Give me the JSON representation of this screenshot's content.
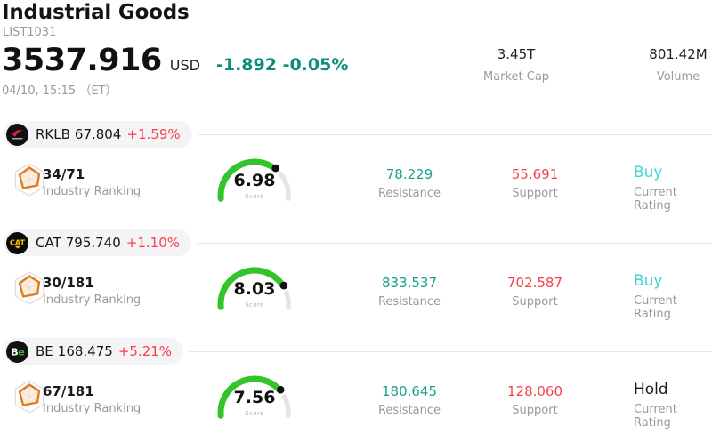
{
  "header": {
    "title": "Industrial Goods",
    "subtitle": "LIST1031",
    "price": "3537.916",
    "currency": "USD",
    "change": "-1.892 -0.05%",
    "timestamp": "04/10, 15:15 （ET）",
    "stats": [
      {
        "value": "3.45T",
        "label": "Market Cap"
      },
      {
        "value": "801.42M",
        "label": "Volume"
      }
    ]
  },
  "stocks": [
    {
      "ticker": "RKLB",
      "price": "67.804",
      "change": "+1.59%",
      "logo": "rocketlab-logo",
      "ranking": "34/71",
      "ranking_label": "Industry Ranking",
      "score": 6.98,
      "score_label": "Score",
      "resistance": "78.229",
      "resistance_label": "Resistance",
      "support": "55.691",
      "support_label": "Support",
      "rating": "Buy",
      "rating_label": "Current Rating"
    },
    {
      "ticker": "CAT",
      "price": "795.740",
      "change": "+1.10%",
      "logo": "caterpillar-logo",
      "ranking": "30/181",
      "ranking_label": "Industry Ranking",
      "score": 8.03,
      "score_label": "Score",
      "resistance": "833.537",
      "resistance_label": "Resistance",
      "support": "702.587",
      "support_label": "Support",
      "rating": "Buy",
      "rating_label": "Current Rating"
    },
    {
      "ticker": "BE",
      "price": "168.475",
      "change": "+5.21%",
      "logo": "bloomenergy-logo",
      "ranking": "67/181",
      "ranking_label": "Industry Ranking",
      "score": 7.56,
      "score_label": "Score",
      "resistance": "180.645",
      "resistance_label": "Resistance",
      "support": "128.060",
      "support_label": "Support",
      "rating": "Hold",
      "rating_label": "Current Rating"
    }
  ],
  "colors": {
    "header_change_teal": "#0E8C7C",
    "up_red": "#F5414F",
    "resistance_teal": "#17A18D",
    "support_red": "#F5414F",
    "rating_buy_cyan": "#3FD6D2",
    "rating_hold_black": "#1A1A1A",
    "gauge_green": "#33C42C",
    "gauge_track": "#E4E4EA",
    "gauge_dot": "#111111"
  }
}
